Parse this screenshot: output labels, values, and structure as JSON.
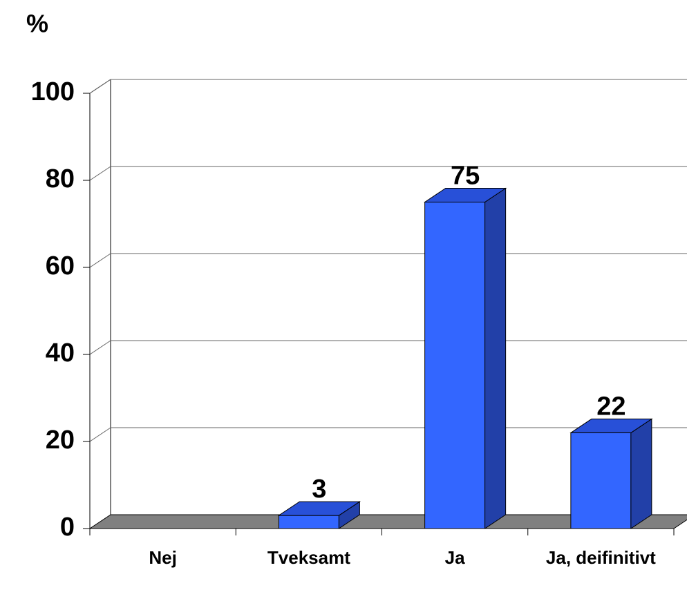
{
  "chart_data": {
    "type": "bar3d",
    "y_label": "%",
    "categories": [
      "Nej",
      "Tveksamt",
      "Ja",
      "Ja, deifinitivt"
    ],
    "values": [
      null,
      3,
      75,
      22
    ],
    "color": "#3366ff",
    "ylim": [
      0,
      100
    ],
    "yticks": [
      0,
      20,
      40,
      60,
      80,
      100
    ],
    "grid": true
  }
}
